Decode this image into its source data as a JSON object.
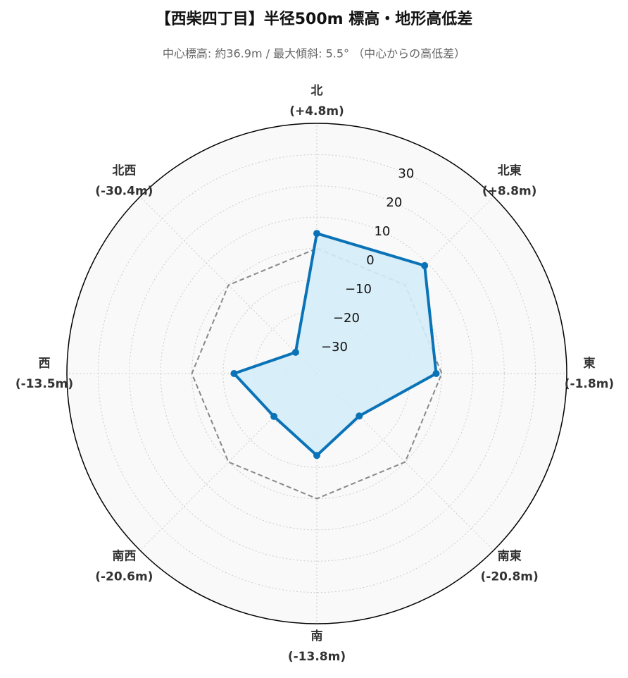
{
  "chart_data": {
    "type": "radar",
    "title": "【西柴四丁目】半径500m 標高・地形高低差",
    "subtitle": "中心標高: 約36.9m / 最大傾斜: 5.5° （中心からの高低差）",
    "categories": [
      "北",
      "北東",
      "東",
      "南東",
      "南",
      "南西",
      "西",
      "北西"
    ],
    "values": [
      4.8,
      8.8,
      -1.8,
      -20.8,
      -13.8,
      -20.6,
      -13.5,
      -30.4
    ],
    "value_labels": [
      "(+4.8m)",
      "(+8.8m)",
      "(-1.8m)",
      "(-20.8m)",
      "(-13.8m)",
      "(-20.6m)",
      "(-13.5m)",
      "(-30.4m)"
    ],
    "color": "#0a73b7",
    "fill_color": "#d4ecf7",
    "baseline": 0,
    "baseline_color": "#888888",
    "rlim": [
      -40,
      40
    ],
    "rticks": [
      {
        "value": -30,
        "label": "−30"
      },
      {
        "value": -20,
        "label": "−20"
      },
      {
        "value": -10,
        "label": "−10"
      },
      0,
      10,
      20,
      30
    ],
    "grid": true
  }
}
